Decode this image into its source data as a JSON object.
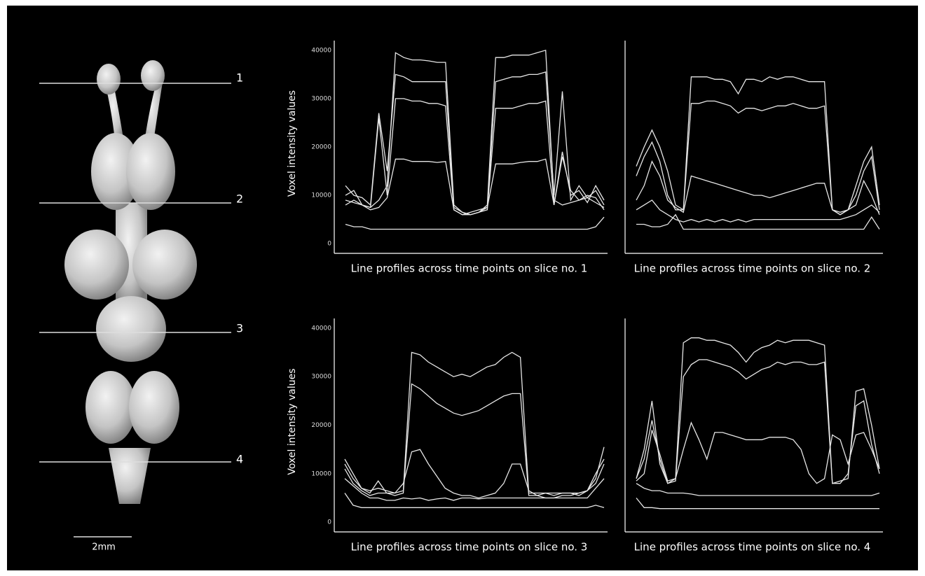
{
  "figure": {
    "slice_labels": [
      "1",
      "2",
      "3",
      "4"
    ],
    "scale_bar": "2mm"
  },
  "chart_data": [
    {
      "type": "line",
      "ylabel": "Voxel intensity values",
      "xlabel": "Line profiles across time points on slice no. 1",
      "ylim": [
        -2000,
        42000
      ],
      "yticks": [
        0,
        10000,
        20000,
        30000,
        40000
      ],
      "series": [
        {
          "color": "#e6e6e6",
          "values": [
            9000,
            8500,
            8000,
            7500,
            9000,
            12000,
            39500,
            38500,
            38000,
            38000,
            37800,
            37500,
            37500,
            8000,
            6500,
            6000,
            6500,
            8000,
            38500,
            38500,
            39000,
            39000,
            39000,
            39500,
            40000,
            9000,
            8000,
            8500,
            9000,
            10000,
            9500,
            7000
          ]
        },
        {
          "color": "#e6e6e6",
          "values": [
            12000,
            10000,
            9500,
            8000,
            27000,
            15000,
            35000,
            34500,
            33500,
            33500,
            33500,
            33500,
            33500,
            7500,
            6500,
            6000,
            6500,
            7500,
            33500,
            34000,
            34500,
            34500,
            35000,
            35000,
            35500,
            10000,
            31500,
            9000,
            12000,
            9500,
            11000,
            8000
          ]
        },
        {
          "color": "#e6e6e6",
          "values": [
            10000,
            11000,
            8000,
            7500,
            26000,
            10000,
            30000,
            30000,
            29500,
            29500,
            29000,
            29000,
            28500,
            7000,
            6000,
            6000,
            6500,
            7000,
            28000,
            28000,
            28000,
            28500,
            29000,
            29000,
            29500,
            8000,
            18000,
            11000,
            9000,
            9500,
            8500,
            7500
          ]
        },
        {
          "color": "#e6e6e6",
          "values": [
            8000,
            9000,
            8000,
            7000,
            7500,
            9500,
            17500,
            17500,
            17000,
            17000,
            17000,
            16800,
            17000,
            7000,
            6000,
            6500,
            7000,
            7500,
            16500,
            16500,
            16500,
            16800,
            17000,
            17000,
            17500,
            8000,
            19000,
            10000,
            11000,
            8500,
            12000,
            9000
          ]
        },
        {
          "color": "#e6e6e6",
          "values": [
            4000,
            3500,
            3500,
            3000,
            3000,
            3000,
            3000,
            3000,
            3000,
            3000,
            3000,
            3000,
            3000,
            3000,
            3000,
            3000,
            3000,
            3000,
            3000,
            3000,
            3000,
            3000,
            3000,
            3000,
            3000,
            3000,
            3000,
            3000,
            3000,
            3000,
            3500,
            5500
          ]
        }
      ]
    },
    {
      "type": "line",
      "xlabel": "Line profiles across time points on slice no. 2",
      "ylim": [
        -2000,
        42000
      ],
      "series": [
        {
          "color": "#e6e6e6",
          "values": [
            16000,
            20000,
            23500,
            20000,
            15000,
            8000,
            7000,
            34500,
            34500,
            34500,
            34000,
            34000,
            33500,
            31000,
            34000,
            34000,
            33500,
            34500,
            34000,
            34500,
            34500,
            34000,
            33500,
            33500,
            33500,
            7000,
            6500,
            7000,
            12000,
            17000,
            20000,
            8000
          ]
        },
        {
          "color": "#e6e6e6",
          "values": [
            14000,
            18000,
            21000,
            17000,
            10000,
            7000,
            7000,
            29000,
            29000,
            29500,
            29500,
            29000,
            28500,
            27000,
            28000,
            28000,
            27500,
            28000,
            28500,
            28500,
            29000,
            28500,
            28000,
            28000,
            28500,
            7000,
            6000,
            7000,
            10000,
            15000,
            18000,
            7000
          ]
        },
        {
          "color": "#e6e6e6",
          "values": [
            9000,
            12000,
            17000,
            14000,
            9000,
            7500,
            6500,
            14000,
            13500,
            13000,
            12500,
            12000,
            11500,
            11000,
            10500,
            10000,
            10000,
            9500,
            10000,
            10500,
            11000,
            11500,
            12000,
            12500,
            12500,
            7000,
            6000,
            7000,
            8000,
            13000,
            10000,
            6000
          ]
        },
        {
          "color": "#e6e6e6",
          "values": [
            7000,
            8000,
            9000,
            7000,
            6000,
            5000,
            4500,
            5000,
            4500,
            5000,
            4500,
            5000,
            4500,
            5000,
            4500,
            5000,
            5000,
            5000,
            5000,
            5000,
            5000,
            5000,
            5000,
            5000,
            5000,
            5000,
            5000,
            5500,
            6000,
            7000,
            8000,
            6500
          ]
        },
        {
          "color": "#e6e6e6",
          "values": [
            4000,
            4000,
            3500,
            3500,
            4000,
            6000,
            3000,
            3000,
            3000,
            3000,
            3000,
            3000,
            3000,
            3000,
            3000,
            3000,
            3000,
            3000,
            3000,
            3000,
            3000,
            3000,
            3000,
            3000,
            3000,
            3000,
            3000,
            3000,
            3000,
            3000,
            5500,
            3000
          ]
        }
      ]
    },
    {
      "type": "line",
      "ylabel": "Voxel intensity values",
      "xlabel": "Line profiles across time points on slice no. 3",
      "ylim": [
        -2000,
        42000
      ],
      "yticks": [
        0,
        10000,
        20000,
        30000,
        40000
      ],
      "series": [
        {
          "color": "#e6e6e6",
          "values": [
            13000,
            10000,
            7000,
            6500,
            7000,
            6500,
            6000,
            6500,
            35000,
            34500,
            33000,
            32000,
            31000,
            30000,
            30500,
            30000,
            31000,
            32000,
            32500,
            34000,
            35000,
            34000,
            6000,
            6000,
            6000,
            6000,
            6000,
            6000,
            6000,
            6500,
            9000,
            15500
          ]
        },
        {
          "color": "#e6e6e6",
          "values": [
            12000,
            9000,
            7000,
            6000,
            8500,
            6000,
            5500,
            6000,
            28500,
            27500,
            26000,
            24500,
            23500,
            22500,
            22000,
            22500,
            23000,
            24000,
            25000,
            26000,
            26500,
            26500,
            5500,
            5500,
            6000,
            5500,
            6000,
            6000,
            5500,
            6500,
            10000,
            13000
          ]
        },
        {
          "color": "#e6e6e6",
          "values": [
            11000,
            8000,
            6500,
            5500,
            6000,
            6000,
            6000,
            8000,
            14500,
            15000,
            12000,
            9500,
            7000,
            6000,
            5500,
            5500,
            5000,
            5500,
            6000,
            8000,
            12000,
            12000,
            6500,
            5500,
            5000,
            5000,
            5500,
            5500,
            6000,
            6500,
            8000,
            12000
          ]
        },
        {
          "color": "#e6e6e6",
          "values": [
            9000,
            7500,
            6000,
            5000,
            5000,
            4500,
            4500,
            5000,
            4800,
            5000,
            4500,
            4800,
            5000,
            4500,
            5000,
            5000,
            4800,
            5000,
            5000,
            5000,
            5000,
            5000,
            5000,
            5000,
            5000,
            5000,
            5000,
            5000,
            5000,
            5000,
            7000,
            9000
          ]
        },
        {
          "color": "#e6e6e6",
          "values": [
            6000,
            3500,
            3000,
            3000,
            3000,
            3000,
            3000,
            3000,
            3000,
            3000,
            3000,
            3000,
            3000,
            3000,
            3000,
            3000,
            3000,
            3000,
            3000,
            3000,
            3000,
            3000,
            3000,
            3000,
            3000,
            3000,
            3000,
            3000,
            3000,
            3000,
            3500,
            3000
          ]
        }
      ]
    },
    {
      "type": "line",
      "xlabel": "Line profiles across time points on slice no. 4",
      "ylim": [
        -2000,
        42000
      ],
      "series": [
        {
          "color": "#e6e6e6",
          "values": [
            9000,
            15000,
            25000,
            12000,
            8000,
            9000,
            37000,
            38000,
            38000,
            37500,
            37500,
            37000,
            36500,
            35000,
            33000,
            35000,
            36000,
            36500,
            37500,
            37000,
            37500,
            37500,
            37500,
            37000,
            36500,
            8000,
            8500,
            9000,
            27000,
            27500,
            20000,
            11000
          ]
        },
        {
          "color": "#e6e6e6",
          "values": [
            9000,
            13000,
            21000,
            13000,
            8000,
            8500,
            30000,
            32500,
            33500,
            33500,
            33000,
            32500,
            32000,
            31000,
            29500,
            30500,
            31500,
            32000,
            33000,
            32500,
            33000,
            33000,
            32500,
            32500,
            33000,
            8000,
            8000,
            10000,
            24000,
            25000,
            16000,
            10000
          ]
        },
        {
          "color": "#e6e6e6",
          "values": [
            8500,
            10000,
            19000,
            14000,
            8500,
            9000,
            15000,
            20500,
            17000,
            13000,
            18500,
            18500,
            18000,
            17500,
            17000,
            17000,
            17000,
            17500,
            17500,
            17500,
            17000,
            15000,
            10000,
            8000,
            9000,
            18000,
            17000,
            12000,
            18000,
            18500,
            15000,
            11000
          ]
        },
        {
          "color": "#e6e6e6",
          "values": [
            8000,
            7000,
            6500,
            6500,
            6000,
            6000,
            6000,
            5800,
            5500,
            5500,
            5500,
            5500,
            5500,
            5500,
            5500,
            5500,
            5500,
            5500,
            5500,
            5500,
            5500,
            5500,
            5500,
            5500,
            5500,
            5500,
            5500,
            5500,
            5500,
            5500,
            5500,
            6000
          ]
        },
        {
          "color": "#e6e6e6",
          "values": [
            5000,
            3000,
            3000,
            2800,
            2800,
            2800,
            2800,
            2800,
            2800,
            2800,
            2800,
            2800,
            2800,
            2800,
            2800,
            2800,
            2800,
            2800,
            2800,
            2800,
            2800,
            2800,
            2800,
            2800,
            2800,
            2800,
            2800,
            2800,
            2800,
            2800,
            2800,
            2800
          ]
        }
      ]
    }
  ]
}
